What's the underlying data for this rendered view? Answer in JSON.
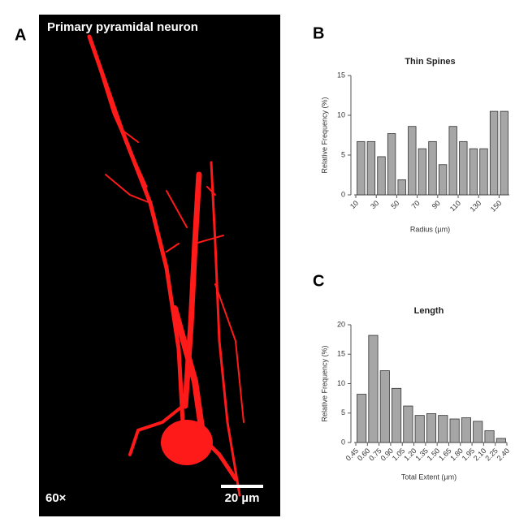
{
  "panel_a": {
    "label": "A",
    "title": "Primary pyramidal neuron",
    "magnification": "60×",
    "scale_bar": "20 µm"
  },
  "chart_data": [
    {
      "type": "bar",
      "panel": "B",
      "title": "Thin  Spines",
      "xlabel": "Radius (µm)",
      "ylabel": "Relative Frequency (%)",
      "categories": [
        "10",
        null,
        "30",
        null,
        "50",
        null,
        "70",
        null,
        "90",
        null,
        "110",
        null,
        "130",
        null,
        "150"
      ],
      "values": [
        6.7,
        6.7,
        4.8,
        7.7,
        1.9,
        8.6,
        5.8,
        6.7,
        3.8,
        8.6,
        6.7,
        5.8,
        5.8,
        10.5,
        10.5
      ],
      "color": "#a6a6a6",
      "ylim": [
        0,
        15
      ],
      "yticks": [
        0,
        5,
        10,
        15
      ]
    },
    {
      "type": "histogram",
      "panel": "C",
      "title": "Length",
      "xlabel": "Total Extent (µm)",
      "ylabel": "Relative Frequency (%)",
      "bins": [
        0.45,
        0.6,
        0.75,
        0.9,
        1.05,
        1.2,
        1.35,
        1.5,
        1.65,
        1.8,
        1.95,
        2.1,
        2.25,
        2.4
      ],
      "values": [
        8.2,
        18.2,
        12.2,
        9.2,
        6.2,
        4.6,
        4.9,
        4.6,
        4.0,
        4.2,
        3.6,
        2.0,
        0.7
      ],
      "color": "#a6a6a6",
      "xlim": [
        0.45,
        2.4
      ],
      "ylim": [
        0,
        20
      ],
      "yticks": [
        0,
        5,
        10,
        15,
        20
      ],
      "xticks": [
        0.45,
        {
          "value": 0.6,
          "label": "0.60"
        },
        0.75,
        {
          "value": 0.9,
          "label": "0.90"
        },
        1.05,
        {
          "value": 1.2,
          "label": "1.20"
        },
        1.35,
        {
          "value": 1.5,
          "label": "1.50"
        },
        1.65,
        {
          "value": 1.8,
          "label": "1.80"
        },
        1.95,
        {
          "value": 2.1,
          "label": "2.10"
        },
        2.25,
        {
          "value": 2.4,
          "label": "2.40"
        }
      ]
    }
  ]
}
